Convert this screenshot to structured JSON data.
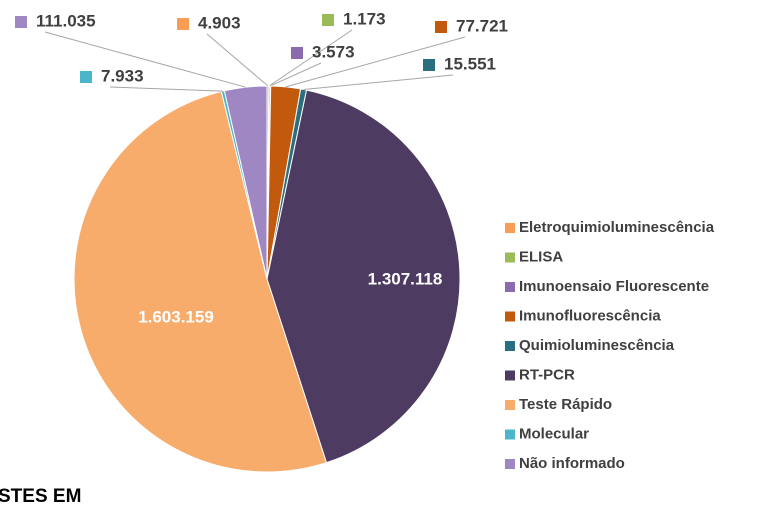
{
  "chart_data": {
    "type": "pie",
    "categories": [
      "Eletroquimioluminescência",
      "ELISA",
      "Imunoensaio Fluorescente",
      "Imunofluorescência",
      "Quimioluminescência",
      "RT-PCR",
      "Teste Rápido",
      "Molecular",
      "Não informado"
    ],
    "values": [
      4903,
      1173,
      3573,
      77721,
      15551,
      1307118,
      1603159,
      7933,
      111035
    ],
    "value_labels": [
      "4.903",
      "1.173",
      "3.573",
      "77.721",
      "15.551",
      "1.307.118",
      "1.603.159",
      "7.933",
      "111.035"
    ],
    "colors": [
      "#f79d55",
      "#9bbb59",
      "#8a6bb0",
      "#c25a0e",
      "#2a6f80",
      "#4e3b62",
      "#f8ac6c",
      "#4bb5cc",
      "#9f87c4"
    ],
    "annotation": "STES EM"
  }
}
